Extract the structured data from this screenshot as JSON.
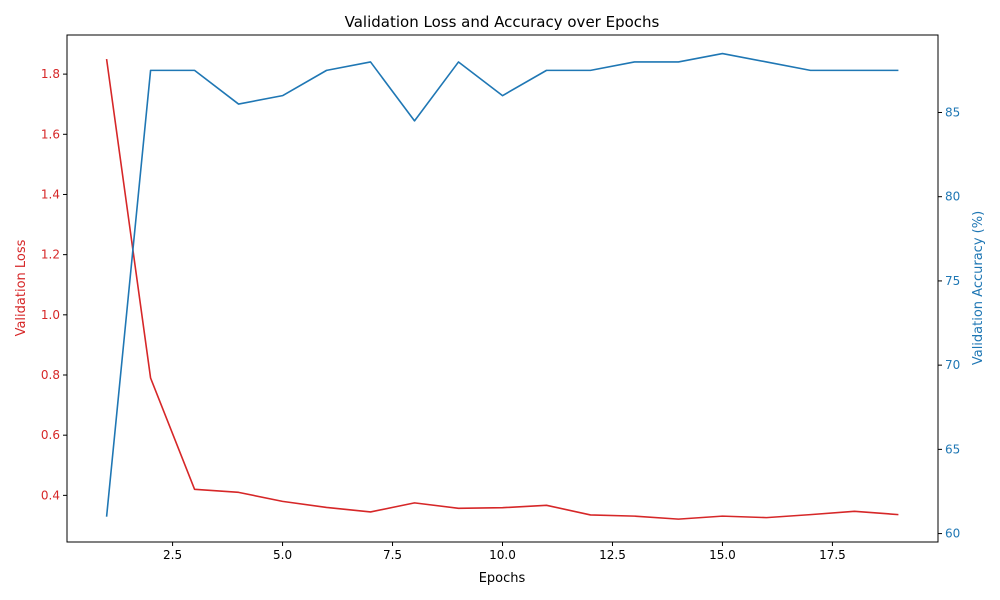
{
  "chart_data": {
    "type": "line",
    "title": "Validation Loss and Accuracy over Epochs",
    "xlabel": "Epochs",
    "ylabel_left": "Validation Loss",
    "ylabel_right": "Validation Accuracy (%)",
    "xlim": [
      0.1,
      19.9
    ],
    "ylim_left": [
      0.245,
      1.93
    ],
    "ylim_right": [
      59.5,
      89.6
    ],
    "x_ticks": [
      2.5,
      5.0,
      7.5,
      10.0,
      12.5,
      15.0,
      17.5
    ],
    "x_tick_labels": [
      "2.5",
      "5.0",
      "7.5",
      "10.0",
      "12.5",
      "15.0",
      "17.5"
    ],
    "y_left_ticks": [
      0.4,
      0.6,
      0.8,
      1.0,
      1.2,
      1.4,
      1.6,
      1.8
    ],
    "y_left_tick_labels": [
      "0.4",
      "0.6",
      "0.8",
      "1.0",
      "1.2",
      "1.4",
      "1.6",
      "1.8"
    ],
    "y_right_ticks": [
      60,
      65,
      70,
      75,
      80,
      85
    ],
    "y_right_tick_labels": [
      "60",
      "65",
      "70",
      "75",
      "80",
      "85"
    ],
    "grid": false,
    "x": [
      1,
      2,
      3,
      4,
      5,
      6,
      7,
      8,
      9,
      10,
      11,
      12,
      13,
      14,
      15,
      16,
      17,
      18,
      19
    ],
    "series": [
      {
        "axis": "left",
        "color": "#d62728",
        "values": [
          1.85,
          0.79,
          0.42,
          0.41,
          0.38,
          0.36,
          0.345,
          0.375,
          0.357,
          0.359,
          0.367,
          0.335,
          0.331,
          0.321,
          0.331,
          0.326,
          0.336,
          0.347,
          0.336
        ]
      },
      {
        "axis": "right",
        "color": "#1f77b4",
        "values": [
          61.0,
          87.5,
          87.5,
          85.5,
          86.0,
          87.5,
          88.0,
          84.5,
          88.0,
          86.0,
          87.5,
          87.5,
          88.0,
          88.0,
          88.5,
          88.0,
          87.5,
          87.5,
          87.5
        ]
      }
    ]
  }
}
